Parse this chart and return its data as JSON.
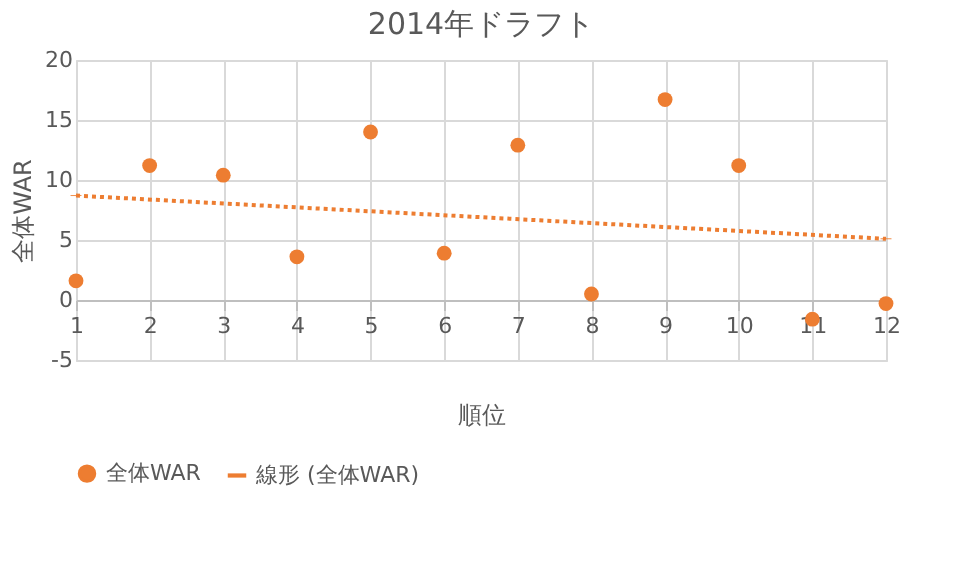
{
  "chart_data": {
    "type": "scatter",
    "title": "2014年ドラフト",
    "xlabel": "順位",
    "ylabel": "全体WAR",
    "xlim": [
      1,
      12
    ],
    "xticks": [
      1,
      2,
      3,
      4,
      5,
      6,
      7,
      8,
      9,
      10,
      11,
      12
    ],
    "ylim": [
      -5,
      20
    ],
    "yticks": [
      -5,
      0,
      5,
      10,
      15,
      20
    ],
    "grid": true,
    "legend": "bottom",
    "marker": "circle",
    "series": [
      {
        "name": "全体WAR",
        "color": "#ed7d31",
        "x": [
          1,
          2,
          3,
          4,
          5,
          6,
          7,
          8,
          9,
          10,
          11,
          12
        ],
        "values": [
          1.6,
          11.2,
          10.4,
          3.6,
          14.0,
          3.9,
          12.9,
          0.5,
          16.7,
          11.2,
          -1.6,
          -0.3
        ]
      },
      {
        "name": "線形 (全体WAR)",
        "type": "line",
        "line_style": "dotted",
        "marker": "none",
        "color": "#ed7d31",
        "x": [
          1,
          12
        ],
        "values": [
          8.7,
          5.1
        ]
      }
    ]
  }
}
